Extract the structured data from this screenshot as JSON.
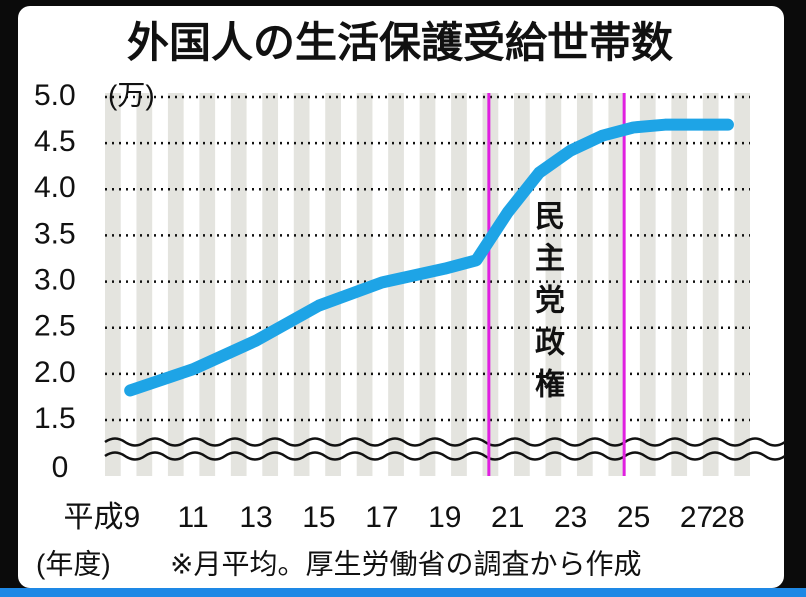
{
  "chart_data": {
    "type": "line",
    "title": "外国人の生活保護受給世帯数",
    "y_unit": "(万)",
    "x": [
      9,
      11,
      13,
      15,
      17,
      19,
      20,
      21,
      22,
      23,
      24,
      25,
      26,
      27,
      28
    ],
    "series": [
      {
        "color": "#1ea4e6",
        "values": [
          1.82,
          2.05,
          2.36,
          2.74,
          2.99,
          3.14,
          3.23,
          3.75,
          4.18,
          4.42,
          4.58,
          4.67,
          4.7,
          4.7,
          4.7
        ]
      }
    ],
    "xlim": [
      8.2,
      28.7
    ],
    "xticks": [
      {
        "value": 9,
        "label": "平成9"
      },
      11,
      13,
      15,
      17,
      19,
      21,
      23,
      25,
      27,
      28
    ],
    "ylim": [
      1.5,
      5.0
    ],
    "yticks": [
      {
        "value": 1.5,
        "label": "1.5"
      },
      {
        "value": 2.0,
        "label": "2.0"
      },
      {
        "value": 2.5,
        "label": "2.5"
      },
      {
        "value": 3.0,
        "label": "3.0"
      },
      {
        "value": 3.5,
        "label": "3.5"
      },
      {
        "value": 4.0,
        "label": "4.0"
      },
      {
        "value": 4.5,
        "label": "4.5"
      },
      {
        "value": 5.0,
        "label": "5.0"
      }
    ],
    "yticks_below_break": [
      0
    ],
    "grid": true,
    "vlines": [
      20.4,
      24.7
    ],
    "vline_color": "#e020e0",
    "annotation": "民主党政権",
    "x_note": "(年度)",
    "source": "※月平均。厚生労働省の調査から作成"
  }
}
